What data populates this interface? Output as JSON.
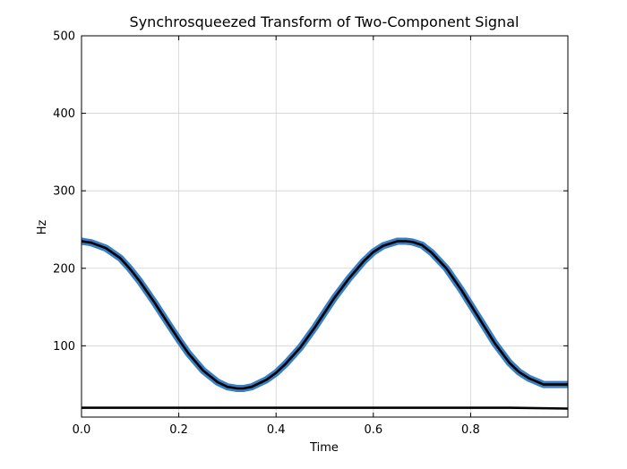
{
  "chart_data": {
    "type": "line",
    "title": "Synchrosqueezed Transform of Two-Component Signal",
    "xlabel": "Time",
    "ylabel": "Hz",
    "xlim": [
      0.0,
      1.0
    ],
    "ylim": [
      8,
      500
    ],
    "x_ticks": [
      0.0,
      0.2,
      0.4,
      0.6,
      0.8
    ],
    "x_tick_labels": [
      "0.0",
      "0.2",
      "0.4",
      "0.6",
      "0.8"
    ],
    "y_ticks": [
      100,
      200,
      300,
      400,
      500
    ],
    "y_tick_labels": [
      "100",
      "200",
      "300",
      "400",
      "500"
    ],
    "grid": true,
    "series": [
      {
        "color": "#000000",
        "band_color": "#3a7fc4",
        "x": [
          0.0,
          0.02,
          0.05,
          0.08,
          0.1,
          0.12,
          0.15,
          0.18,
          0.2,
          0.22,
          0.25,
          0.28,
          0.3,
          0.32,
          0.333,
          0.35,
          0.38,
          0.4,
          0.42,
          0.45,
          0.48,
          0.5,
          0.52,
          0.55,
          0.58,
          0.6,
          0.62,
          0.65,
          0.667,
          0.68,
          0.7,
          0.72,
          0.75,
          0.78,
          0.8,
          0.82,
          0.85,
          0.88,
          0.9,
          0.92,
          0.95,
          0.97,
          1.0
        ],
        "y": [
          235,
          233,
          226,
          213,
          199,
          183,
          156,
          127,
          108,
          90,
          68,
          53,
          47,
          45,
          45,
          47,
          56,
          65,
          77,
          98,
          124,
          143,
          162,
          187,
          209,
          221,
          229,
          235,
          235,
          234,
          230,
          220,
          200,
          173,
          153,
          133,
          103,
          78,
          66,
          58,
          50,
          50,
          50
        ]
      },
      {
        "color": "#000000",
        "x": [
          0.0,
          0.25,
          0.5,
          0.75,
          0.88,
          1.0
        ],
        "y": [
          20,
          20,
          20,
          20,
          20,
          19
        ]
      }
    ]
  }
}
